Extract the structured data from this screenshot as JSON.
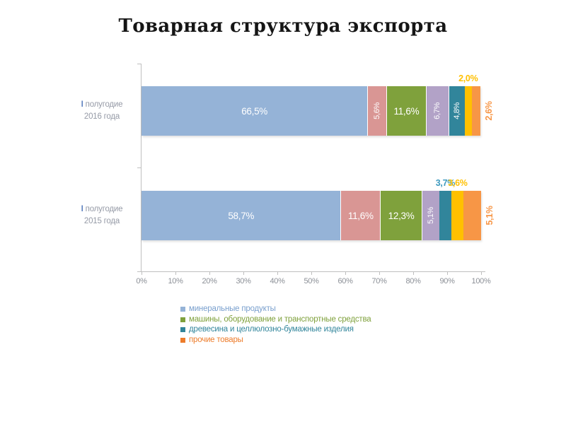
{
  "slide": {
    "title": "Товарная структура экспорта"
  },
  "chart_data": {
    "type": "bar",
    "variant": "horizontal-stacked",
    "title": "Товарная структура экспорта",
    "unit": "%",
    "x_axis": {
      "min": 0,
      "max": 100,
      "tick_labels": [
        "0%",
        "10%",
        "20%",
        "30%",
        "40%",
        "50%",
        "60%",
        "70%",
        "80%",
        "90%",
        "100%"
      ],
      "grid": false
    },
    "categories": [
      {
        "numeral": "I",
        "line1": "полугодие",
        "line2": "2016 года"
      },
      {
        "numeral": "I",
        "line1": "полугодие",
        "line2": "2015 года"
      }
    ],
    "series": [
      {
        "name": "минеральные продукты",
        "color": "#95B3D7",
        "values": [
          66.5,
          58.7
        ],
        "labels": [
          "66,5%",
          "58,7%"
        ],
        "placements": [
          "inside-horizontal",
          "inside-horizontal"
        ],
        "outside_label_color": "#95B3D7"
      },
      {
        "name": "",
        "color": "#D99694",
        "values": [
          5.6,
          11.6
        ],
        "labels": [
          "5,6%",
          "11,6%"
        ],
        "placements": [
          "inside-vertical",
          "inside-horizontal"
        ],
        "outside_label_color": "#D99694"
      },
      {
        "name": "машины, оборудование и транспортные средства",
        "color": "#7FA13C",
        "values": [
          11.6,
          12.3
        ],
        "labels": [
          "11,6%",
          "12,3%"
        ],
        "placements": [
          "inside-horizontal",
          "inside-horizontal"
        ],
        "outside_label_color": "#7FA13C"
      },
      {
        "name": "",
        "color": "#B2A2C7",
        "values": [
          6.7,
          5.1
        ],
        "labels": [
          "6,7%",
          "5,1%"
        ],
        "placements": [
          "inside-vertical",
          "inside-vertical"
        ],
        "outside_label_color": "#B2A2C7"
      },
      {
        "name": "древесина и целлюлозно-бумажные изделия",
        "color": "#31859B",
        "values": [
          4.8,
          3.7
        ],
        "labels": [
          "4,8%",
          "3,7%"
        ],
        "placements": [
          "inside-vertical",
          "above"
        ],
        "outside_label_color": "#3E9ABF"
      },
      {
        "name": "",
        "color": "#FFC000",
        "values": [
          2.0,
          3.6
        ],
        "labels": [
          "2,0%",
          "3,6%"
        ],
        "placements": [
          "above",
          "above"
        ],
        "outside_label_color": "#FFC000"
      },
      {
        "name": "прочие товары",
        "color": "#F79646",
        "values": [
          2.6,
          5.1
        ],
        "labels": [
          "2,6%",
          "5,1%"
        ],
        "placements": [
          "right-vertical",
          "right-vertical"
        ],
        "outside_label_color": "#F79646"
      }
    ],
    "legend": {
      "position": "bottom",
      "items": [
        {
          "label": "минеральные продукты",
          "marker_color": "#95B3D7",
          "text_color": "#7AA0CE"
        },
        {
          "label": "машины, оборудование и транспортные средства",
          "marker_color": "#7FA13C",
          "text_color": "#7FA13C"
        },
        {
          "label": "древесина и целлюлозно-бумажные изделия",
          "marker_color": "#31859B",
          "text_color": "#31859B"
        },
        {
          "label": "прочие товары",
          "marker_color": "#ED7C2B",
          "text_color": "#ED7C2B"
        }
      ]
    }
  }
}
